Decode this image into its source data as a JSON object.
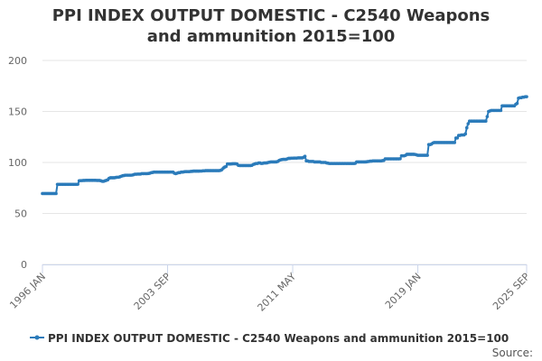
{
  "chart_data": {
    "type": "line",
    "title": "PPI INDEX OUTPUT DOMESTIC - C2540 Weapons and ammunition 2015=100",
    "source": "Source:",
    "color": "#2b7bba",
    "grid": true,
    "legend": "bottom",
    "ylim": [
      0,
      200
    ],
    "yticks": [
      0,
      50,
      100,
      150,
      200
    ],
    "categories": [
      "1996 JAN",
      null,
      null,
      null,
      null,
      null,
      null,
      null,
      null,
      null,
      null,
      null,
      null,
      null,
      null,
      null,
      null,
      null,
      null,
      null,
      null,
      null,
      null,
      null,
      null,
      null,
      null,
      null,
      null,
      null,
      null,
      null,
      null,
      null,
      null,
      null,
      null,
      null,
      null,
      null,
      null,
      null,
      null,
      null,
      null,
      null,
      null,
      null,
      null,
      null,
      null,
      null,
      null,
      null,
      null,
      null,
      null,
      null,
      null,
      null,
      null,
      null,
      null,
      null,
      null,
      null,
      null,
      null,
      null,
      null,
      null,
      null,
      null,
      null,
      null,
      null,
      null,
      null,
      null,
      null,
      null,
      null,
      null,
      null,
      null,
      null,
      null,
      null,
      null,
      null,
      null,
      null,
      "2003 SEP",
      null,
      null,
      null,
      null,
      null,
      null,
      null,
      null,
      null,
      null,
      null,
      null,
      null,
      null,
      null,
      null,
      null,
      null,
      null,
      null,
      null,
      null,
      null,
      null,
      null,
      null,
      null,
      null,
      null,
      null,
      null,
      null,
      null,
      null,
      null,
      null,
      null,
      null,
      null,
      null,
      null,
      null,
      null,
      null,
      null,
      null,
      null,
      null,
      null,
      null,
      null,
      null,
      null,
      null,
      null,
      null,
      null,
      null,
      null,
      null,
      null,
      null,
      null,
      null,
      null,
      null,
      null,
      null,
      null,
      null,
      null,
      null,
      null,
      null,
      null,
      null,
      null,
      null,
      null,
      null,
      null,
      null,
      null,
      null,
      null,
      null,
      null,
      null,
      null,
      null,
      null,
      "2011 MAY",
      null,
      null,
      null,
      null,
      null,
      null,
      null,
      null,
      null,
      null,
      null,
      null,
      null,
      null,
      null,
      null,
      null,
      null,
      null,
      null,
      null,
      null,
      null,
      null,
      null,
      null,
      null,
      null,
      null,
      null,
      null,
      null,
      null,
      null,
      null,
      null,
      null,
      null,
      null,
      null,
      null,
      null,
      null,
      null,
      null,
      null,
      null,
      null,
      null,
      null,
      null,
      null,
      null,
      null,
      null,
      null,
      null,
      null,
      null,
      null,
      null,
      null,
      null,
      null,
      null,
      null,
      null,
      null,
      null,
      null,
      null,
      null,
      null,
      null,
      null,
      null,
      null,
      null,
      null,
      null,
      null,
      null,
      null,
      null,
      null,
      null,
      null,
      null,
      null,
      null,
      null,
      "2019 JAN",
      null,
      null,
      null,
      null,
      null,
      null,
      null,
      null,
      null,
      null,
      null,
      null,
      null,
      null,
      null,
      null,
      null,
      null,
      null,
      null,
      null,
      null,
      null,
      null,
      null,
      null,
      null,
      null,
      null,
      null,
      null,
      null,
      null,
      null,
      null,
      null,
      null,
      null,
      null,
      null,
      null,
      null,
      null,
      null,
      null,
      null,
      null,
      null,
      null,
      null,
      null,
      null,
      null,
      null,
      null,
      null,
      null,
      null,
      null,
      null,
      null,
      null,
      null,
      null,
      null,
      null,
      null,
      null,
      null,
      null,
      null,
      null,
      null,
      null,
      null,
      null,
      null,
      null,
      null,
      "2025 SEP"
    ],
    "series": [
      {
        "name": "PPI INDEX OUTPUT DOMESTIC - C2540 Weapons and ammunition 2015=100",
        "color": "#2b7bba",
        "values": [
          69.5,
          69.5,
          69.5,
          69.5,
          69.5,
          69.5,
          69.5,
          69.5,
          69.5,
          69.5,
          69.5,
          78.5,
          78.5,
          78.5,
          78.5,
          78.5,
          78.5,
          78.5,
          78.5,
          78.5,
          78.5,
          78.5,
          78.5,
          78.5,
          78.5,
          78.5,
          78.6,
          82,
          82.2,
          82.2,
          82.4,
          82.4,
          82.5,
          82.5,
          82.5,
          82.5,
          82.5,
          82.5,
          82.5,
          82.5,
          82.4,
          82.4,
          82.4,
          82,
          81.5,
          81.5,
          82,
          82.5,
          83,
          84.5,
          85,
          85,
          85,
          85,
          85.3,
          85.5,
          85.5,
          86,
          86.5,
          87,
          87.2,
          87.5,
          87.5,
          87.5,
          87.5,
          87.5,
          87.6,
          88,
          88.5,
          88.5,
          88.6,
          88.6,
          88.6,
          89,
          89,
          89,
          89,
          89,
          89.2,
          89.5,
          90,
          90.2,
          90.5,
          90.5,
          90.5,
          90.5,
          90.5,
          90.5,
          90.5,
          90.5,
          90.5,
          90.5,
          90.5,
          90.5,
          90.6,
          90.6,
          90.5,
          89.5,
          89,
          89.5,
          90,
          90,
          90.5,
          90.5,
          90.8,
          91,
          91,
          91,
          91,
          91.2,
          91.3,
          91.5,
          91.5,
          91.5,
          91.5,
          91.5,
          91.6,
          91.6,
          91.8,
          91.8,
          92,
          92,
          92,
          92,
          92,
          92,
          92,
          92,
          92,
          92,
          92,
          92.3,
          93,
          94.5,
          95.5,
          96,
          98.5,
          98.5,
          98.5,
          98.6,
          98.7,
          98.7,
          98.7,
          98.5,
          97.2,
          97,
          97,
          97,
          97,
          97,
          97,
          97,
          97,
          97,
          97.2,
          98,
          98.5,
          99,
          99,
          99.5,
          99.5,
          99,
          99.2,
          99.5,
          99.5,
          99.6,
          100,
          100.3,
          100.5,
          100.5,
          100.5,
          100.5,
          100.6,
          101,
          102,
          102.5,
          102.8,
          103,
          103,
          103,
          103.5,
          104,
          104,
          104.2,
          104.2,
          104.3,
          104.3,
          104.3,
          104.5,
          104.5,
          104.5,
          104.5,
          105,
          106,
          101.5,
          101.5,
          101,
          101,
          101,
          101,
          100.5,
          100.5,
          100.5,
          100.5,
          100.5,
          100,
          100,
          100,
          100,
          99.5,
          99.3,
          99,
          99,
          99,
          99,
          99,
          99,
          99,
          99,
          99,
          99,
          99,
          99,
          99,
          99,
          99,
          99,
          99,
          99,
          99,
          99.2,
          100.5,
          100.5,
          100.5,
          100.5,
          100.5,
          100.5,
          100.5,
          100.6,
          100.8,
          101,
          101.3,
          101.3,
          101.5,
          101.5,
          101.5,
          101.5,
          101.5,
          101.5,
          101.5,
          101.8,
          102,
          103.5,
          103.5,
          103.5,
          103.5,
          103.5,
          103.5,
          103.5,
          103.5,
          103.5,
          103.5,
          103.5,
          103.6,
          106.5,
          106.5,
          106.5,
          107,
          108,
          108,
          108,
          108,
          108,
          108,
          107.8,
          107.5,
          107,
          107,
          107,
          107,
          107,
          107,
          107,
          107,
          117.5,
          117.5,
          118,
          119,
          119.5,
          119.5,
          119.5,
          119.5,
          119.5,
          119.5,
          119.5,
          119.5,
          119.5,
          119.5,
          119.5,
          119.5,
          119.5,
          119.5,
          119.5,
          119.5,
          124,
          124,
          126.5,
          126.5,
          127,
          127,
          127,
          128,
          134,
          138,
          140.5,
          140.5,
          140.5,
          140.5,
          140.5,
          140.5,
          140.5,
          140.5,
          140.5,
          140.5,
          140.5,
          140.5,
          140.5,
          145,
          150,
          150.5,
          151,
          151,
          151,
          151,
          151,
          151,
          151,
          151,
          155.5,
          155.5,
          155.5,
          155.5,
          155.5,
          155.5,
          155.5,
          155.5,
          155.5,
          155.5,
          157,
          158,
          163,
          163.5,
          163.5,
          164,
          164,
          164.5,
          164.5
        ]
      }
    ]
  }
}
